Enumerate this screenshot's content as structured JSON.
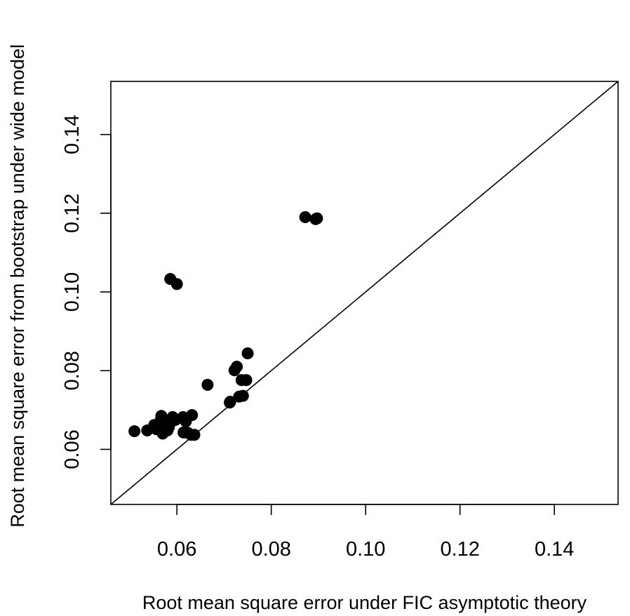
{
  "chart_data": {
    "type": "scatter",
    "title": "",
    "xlabel": "Root mean square error under FIC asymptotic theory",
    "ylabel": "Root mean square error from bootstrap under wide model",
    "xlim": [
      0.046,
      0.1535
    ],
    "ylim": [
      0.046,
      0.1535
    ],
    "xticks": [
      0.06,
      0.08,
      0.1,
      0.12,
      0.14
    ],
    "xtick_labels": [
      "0.06",
      "0.08",
      "0.10",
      "0.12",
      "0.14"
    ],
    "yticks": [
      0.06,
      0.08,
      0.1,
      0.12,
      0.14
    ],
    "ytick_labels": [
      "0.06",
      "0.08",
      "0.10",
      "0.12",
      "0.14"
    ],
    "grid": false,
    "legend": "none",
    "reference_line": {
      "type": "identity",
      "from": [
        0.046,
        0.046
      ],
      "to": [
        0.1535,
        0.1535
      ]
    },
    "marker_color": "#000000",
    "points": [
      {
        "x": 0.051,
        "y": 0.0646
      },
      {
        "x": 0.0537,
        "y": 0.0648
      },
      {
        "x": 0.0552,
        "y": 0.0662
      },
      {
        "x": 0.0557,
        "y": 0.0651
      },
      {
        "x": 0.0562,
        "y": 0.0655
      },
      {
        "x": 0.0566,
        "y": 0.0675
      },
      {
        "x": 0.0567,
        "y": 0.0685
      },
      {
        "x": 0.057,
        "y": 0.064
      },
      {
        "x": 0.0572,
        "y": 0.0659
      },
      {
        "x": 0.0576,
        "y": 0.0663
      },
      {
        "x": 0.058,
        "y": 0.0648
      },
      {
        "x": 0.0583,
        "y": 0.0656
      },
      {
        "x": 0.0588,
        "y": 0.067
      },
      {
        "x": 0.0591,
        "y": 0.0682
      },
      {
        "x": 0.0597,
        "y": 0.0675
      },
      {
        "x": 0.0613,
        "y": 0.0682
      },
      {
        "x": 0.0614,
        "y": 0.0643
      },
      {
        "x": 0.0619,
        "y": 0.0671
      },
      {
        "x": 0.0623,
        "y": 0.0642
      },
      {
        "x": 0.063,
        "y": 0.0637
      },
      {
        "x": 0.0632,
        "y": 0.0687
      },
      {
        "x": 0.0637,
        "y": 0.0637
      },
      {
        "x": 0.0586,
        "y": 0.1033
      },
      {
        "x": 0.06,
        "y": 0.102
      },
      {
        "x": 0.0665,
        "y": 0.0764
      },
      {
        "x": 0.0712,
        "y": 0.0719
      },
      {
        "x": 0.0713,
        "y": 0.0721
      },
      {
        "x": 0.0722,
        "y": 0.0801
      },
      {
        "x": 0.0727,
        "y": 0.081
      },
      {
        "x": 0.0732,
        "y": 0.0734
      },
      {
        "x": 0.0737,
        "y": 0.0776
      },
      {
        "x": 0.074,
        "y": 0.0736
      },
      {
        "x": 0.0747,
        "y": 0.0776
      },
      {
        "x": 0.075,
        "y": 0.0844
      },
      {
        "x": 0.0872,
        "y": 0.119
      },
      {
        "x": 0.0894,
        "y": 0.1185
      },
      {
        "x": 0.0897,
        "y": 0.1187
      }
    ]
  }
}
